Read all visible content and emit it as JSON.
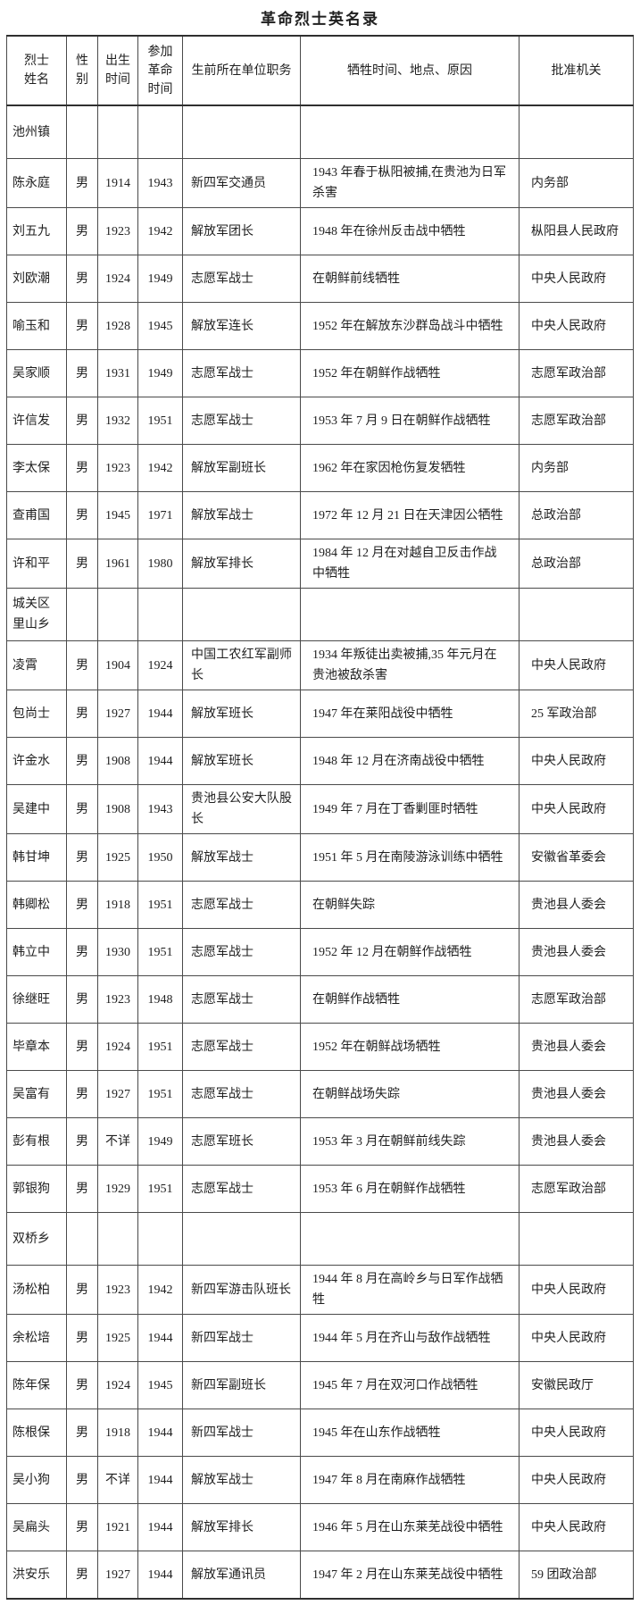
{
  "page": {
    "title": "革命烈士英名录"
  },
  "table": {
    "columns": [
      {
        "key": "name",
        "label": "烈士\n姓名"
      },
      {
        "key": "gender",
        "label": "性\n别"
      },
      {
        "key": "birth",
        "label": "出生\n时间"
      },
      {
        "key": "joined",
        "label": "参加\n革命\n时间"
      },
      {
        "key": "unit",
        "label": "生前所在单位职务"
      },
      {
        "key": "death",
        "label": "牺牲时间、地点、原因"
      },
      {
        "key": "approver",
        "label": "批准机关"
      }
    ],
    "rows": [
      {
        "type": "section",
        "name": "池州镇"
      },
      {
        "type": "data",
        "name": "陈永庭",
        "gender": "男",
        "birth": "1914",
        "joined": "1943",
        "unit": "新四军交通员",
        "death": "1943 年春于枞阳被捕,在贵池为日军杀害",
        "approver": "内务部"
      },
      {
        "type": "data",
        "name": "刘五九",
        "gender": "男",
        "birth": "1923",
        "joined": "1942",
        "unit": "解放军团长",
        "death": "1948 年在徐州反击战中牺牲",
        "approver": "枞阳县人民政府"
      },
      {
        "type": "data",
        "name": "刘欧潮",
        "gender": "男",
        "birth": "1924",
        "joined": "1949",
        "unit": "志愿军战士",
        "death": "在朝鲜前线牺牲",
        "approver": "中央人民政府"
      },
      {
        "type": "data",
        "name": "喻玉和",
        "gender": "男",
        "birth": "1928",
        "joined": "1945",
        "unit": "解放军连长",
        "death": "1952 年在解放东沙群岛战斗中牺牲",
        "approver": "中央人民政府"
      },
      {
        "type": "data",
        "name": "吴家顺",
        "gender": "男",
        "birth": "1931",
        "joined": "1949",
        "unit": "志愿军战士",
        "death": "1952 年在朝鲜作战牺牲",
        "approver": "志愿军政治部"
      },
      {
        "type": "data",
        "name": "许信发",
        "gender": "男",
        "birth": "1932",
        "joined": "1951",
        "unit": "志愿军战士",
        "death": "1953 年 7 月 9 日在朝鲜作战牺牲",
        "approver": "志愿军政治部"
      },
      {
        "type": "data",
        "name": "李太保",
        "gender": "男",
        "birth": "1923",
        "joined": "1942",
        "unit": "解放军副班长",
        "death": "1962 年在家因枪伤复发牺牲",
        "approver": "内务部"
      },
      {
        "type": "data",
        "name": "查甫国",
        "gender": "男",
        "birth": "1945",
        "joined": "1971",
        "unit": "解放军战士",
        "death": "1972 年 12 月 21 日在天津因公牺牲",
        "approver": "总政治部"
      },
      {
        "type": "data",
        "name": "许和平",
        "gender": "男",
        "birth": "1961",
        "joined": "1980",
        "unit": "解放军排长",
        "death": "1984 年 12 月在对越自卫反击作战中牺牲",
        "approver": "总政治部"
      },
      {
        "type": "section",
        "name": "城关区\n里山乡"
      },
      {
        "type": "data",
        "name": "凌霄",
        "gender": "男",
        "birth": "1904",
        "joined": "1924",
        "unit": "中国工农红军副师长",
        "death": "1934 年叛徒出卖被捕,35 年元月在贵池被敌杀害",
        "approver": "中央人民政府"
      },
      {
        "type": "data",
        "name": "包尚士",
        "gender": "男",
        "birth": "1927",
        "joined": "1944",
        "unit": "解放军班长",
        "death": "1947 年在莱阳战役中牺牲",
        "approver": "25 军政治部"
      },
      {
        "type": "data",
        "name": "许金水",
        "gender": "男",
        "birth": "1908",
        "joined": "1944",
        "unit": "解放军班长",
        "death": "1948 年 12 月在济南战役中牺牲",
        "approver": "中央人民政府"
      },
      {
        "type": "data",
        "name": "吴建中",
        "gender": "男",
        "birth": "1908",
        "joined": "1943",
        "unit": "贵池县公安大队股长",
        "death": "1949 年 7 月在丁香剿匪时牺牲",
        "approver": "中央人民政府"
      },
      {
        "type": "data",
        "name": "韩甘坤",
        "gender": "男",
        "birth": "1925",
        "joined": "1950",
        "unit": "解放军战士",
        "death": "1951 年 5 月在南陵游泳训练中牺牲",
        "approver": "安徽省革委会"
      },
      {
        "type": "data",
        "name": "韩卿松",
        "gender": "男",
        "birth": "1918",
        "joined": "1951",
        "unit": "志愿军战士",
        "death": "在朝鲜失踪",
        "approver": "贵池县人委会"
      },
      {
        "type": "data",
        "name": "韩立中",
        "gender": "男",
        "birth": "1930",
        "joined": "1951",
        "unit": "志愿军战士",
        "death": "1952 年 12 月在朝鲜作战牺牲",
        "approver": "贵池县人委会"
      },
      {
        "type": "data",
        "name": "徐继旺",
        "gender": "男",
        "birth": "1923",
        "joined": "1948",
        "unit": "志愿军战士",
        "death": "在朝鲜作战牺牲",
        "approver": "志愿军政治部"
      },
      {
        "type": "data",
        "name": "毕章本",
        "gender": "男",
        "birth": "1924",
        "joined": "1951",
        "unit": "志愿军战士",
        "death": "1952 年在朝鲜战场牺牲",
        "approver": "贵池县人委会"
      },
      {
        "type": "data",
        "name": "吴富有",
        "gender": "男",
        "birth": "1927",
        "joined": "1951",
        "unit": "志愿军战士",
        "death": "在朝鲜战场失踪",
        "approver": "贵池县人委会"
      },
      {
        "type": "data",
        "name": "彭有根",
        "gender": "男",
        "birth": "不详",
        "joined": "1949",
        "unit": "志愿军班长",
        "death": "1953 年 3 月在朝鲜前线失踪",
        "approver": "贵池县人委会"
      },
      {
        "type": "data",
        "name": "郭银狗",
        "gender": "男",
        "birth": "1929",
        "joined": "1951",
        "unit": "志愿军战士",
        "death": "1953 年 6 月在朝鲜作战牺牲",
        "approver": "志愿军政治部"
      },
      {
        "type": "section",
        "name": "双桥乡"
      },
      {
        "type": "data",
        "name": "汤松柏",
        "gender": "男",
        "birth": "1923",
        "joined": "1942",
        "unit": "新四军游击队班长",
        "death": "1944 年 8 月在高岭乡与日军作战牺牲",
        "approver": "中央人民政府"
      },
      {
        "type": "data",
        "name": "余松培",
        "gender": "男",
        "birth": "1925",
        "joined": "1944",
        "unit": "新四军战士",
        "death": "1944 年 5 月在齐山与敌作战牺牲",
        "approver": "中央人民政府"
      },
      {
        "type": "data",
        "name": "陈年保",
        "gender": "男",
        "birth": "1924",
        "joined": "1945",
        "unit": "新四军副班长",
        "death": "1945 年 7 月在双河口作战牺牲",
        "approver": "安徽民政厅"
      },
      {
        "type": "data",
        "name": "陈根保",
        "gender": "男",
        "birth": "1918",
        "joined": "1944",
        "unit": "新四军战士",
        "death": "1945 年在山东作战牺牲",
        "approver": "中央人民政府"
      },
      {
        "type": "data",
        "name": "吴小狗",
        "gender": "男",
        "birth": "不详",
        "joined": "1944",
        "unit": "解放军战士",
        "death": "1947 年 8 月在南麻作战牺牲",
        "approver": "中央人民政府"
      },
      {
        "type": "data",
        "name": "吴扁头",
        "gender": "男",
        "birth": "1921",
        "joined": "1944",
        "unit": "解放军排长",
        "death": "1946 年 5 月在山东莱芜战役中牺牲",
        "approver": "中央人民政府"
      },
      {
        "type": "data",
        "name": "洪安乐",
        "gender": "男",
        "birth": "1927",
        "joined": "1944",
        "unit": "解放军通讯员",
        "death": "1947 年 2 月在山东莱芜战役中牺牲",
        "approver": "59 团政治部"
      }
    ]
  }
}
